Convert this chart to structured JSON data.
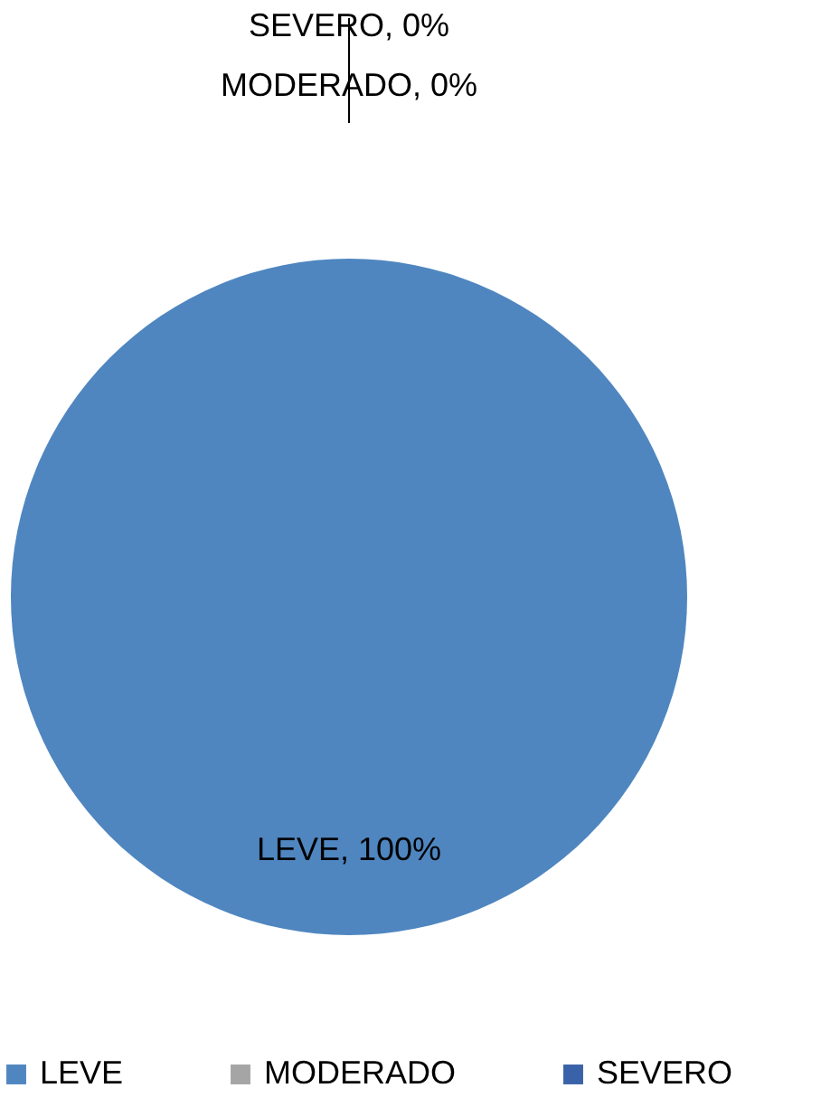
{
  "chart_data": {
    "type": "pie",
    "categories": [
      "LEVE",
      "MODERADO",
      "SEVERO"
    ],
    "values": [
      100,
      0,
      0
    ],
    "colors": [
      "#4f86c0",
      "#a5a5a5",
      "#3a62a8"
    ],
    "value_labels": [
      "LEVE, 100%",
      "MODERADO, 0%",
      "SEVERO, 0%"
    ],
    "legend": "bottom"
  }
}
